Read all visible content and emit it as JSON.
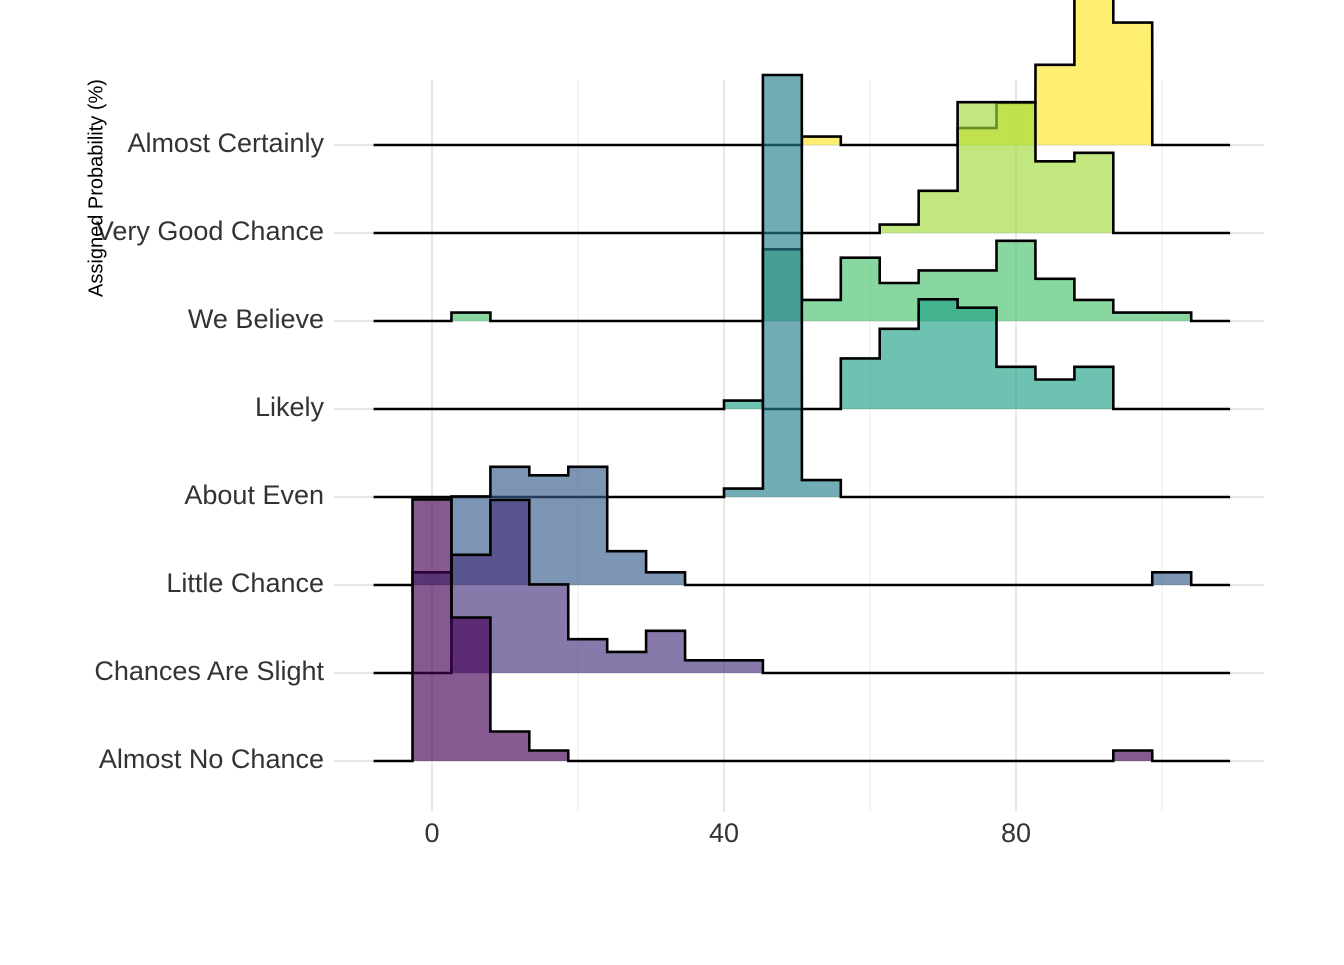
{
  "chart_data": {
    "type": "ridgeline-histogram",
    "title": "",
    "xlabel": "",
    "ylabel": "Assigned Probability (%)",
    "xlim": [
      -10,
      110
    ],
    "xticks": [
      0,
      40,
      80
    ],
    "grid": true,
    "legend": "none",
    "bin_width": 5.33,
    "bin_starts": [
      -8,
      -2.67,
      2.67,
      8,
      13.33,
      18.67,
      24,
      29.33,
      34.67,
      40,
      45.33,
      50.67,
      56,
      61.33,
      66.67,
      72,
      77.33,
      82.67,
      88,
      93.33,
      98.67,
      104
    ],
    "series": [
      {
        "name": "Almost No Chance",
        "color": "#440154",
        "values": [
          0,
          0.62,
          0.34,
          0.07,
          0.025,
          0,
          0,
          0,
          0,
          0,
          0,
          0,
          0,
          0,
          0,
          0,
          0,
          0,
          0,
          0.025,
          0,
          0
        ]
      },
      {
        "name": "Chances Are Slight",
        "color": "#46337E",
        "values": [
          0,
          0,
          0.28,
          0.41,
          0.21,
          0.08,
          0.05,
          0.1,
          0.03,
          0.03,
          0,
          0,
          0,
          0,
          0,
          0,
          0,
          0,
          0,
          0,
          0,
          0
        ]
      },
      {
        "name": "Little Chance",
        "color": "#365C8D",
        "values": [
          0,
          0.03,
          0.21,
          0.28,
          0.26,
          0.28,
          0.08,
          0.03,
          0,
          0,
          0,
          0,
          0,
          0,
          0,
          0,
          0,
          0,
          0,
          0,
          0.03,
          0
        ]
      },
      {
        "name": "About Even",
        "color": "#277F8E",
        "values": [
          0,
          0,
          0,
          0,
          0,
          0,
          0,
          0,
          0,
          0.02,
          1.0,
          0.04,
          0,
          0,
          0,
          0,
          0,
          0,
          0,
          0,
          0,
          0
        ]
      },
      {
        "name": "Likely",
        "color": "#1FA187",
        "values": [
          0,
          0,
          0,
          0,
          0,
          0,
          0,
          0,
          0,
          0.02,
          0,
          0,
          0.12,
          0.19,
          0.26,
          0.24,
          0.1,
          0.07,
          0.1,
          0,
          0,
          0
        ]
      },
      {
        "name": "We Believe",
        "color": "#4AC16D",
        "values": [
          0,
          0,
          0.02,
          0,
          0,
          0,
          0,
          0,
          0,
          0,
          0.17,
          0.05,
          0.15,
          0.09,
          0.12,
          0.12,
          0.19,
          0.1,
          0.05,
          0.02,
          0.02,
          0
        ]
      },
      {
        "name": "Very Good Chance",
        "color": "#A0DA39",
        "values": [
          0,
          0,
          0,
          0,
          0,
          0,
          0,
          0,
          0,
          0,
          0,
          0,
          0,
          0.02,
          0.1,
          0.31,
          0.31,
          0.17,
          0.19,
          0,
          0,
          0
        ]
      },
      {
        "name": "Almost Certainly",
        "color": "#FDE725",
        "values": [
          0,
          0,
          0,
          0,
          0,
          0,
          0,
          0,
          0,
          0,
          0,
          0.02,
          0,
          0,
          0,
          0.04,
          0.1,
          0.19,
          0.44,
          0.29,
          0,
          0
        ]
      }
    ]
  }
}
